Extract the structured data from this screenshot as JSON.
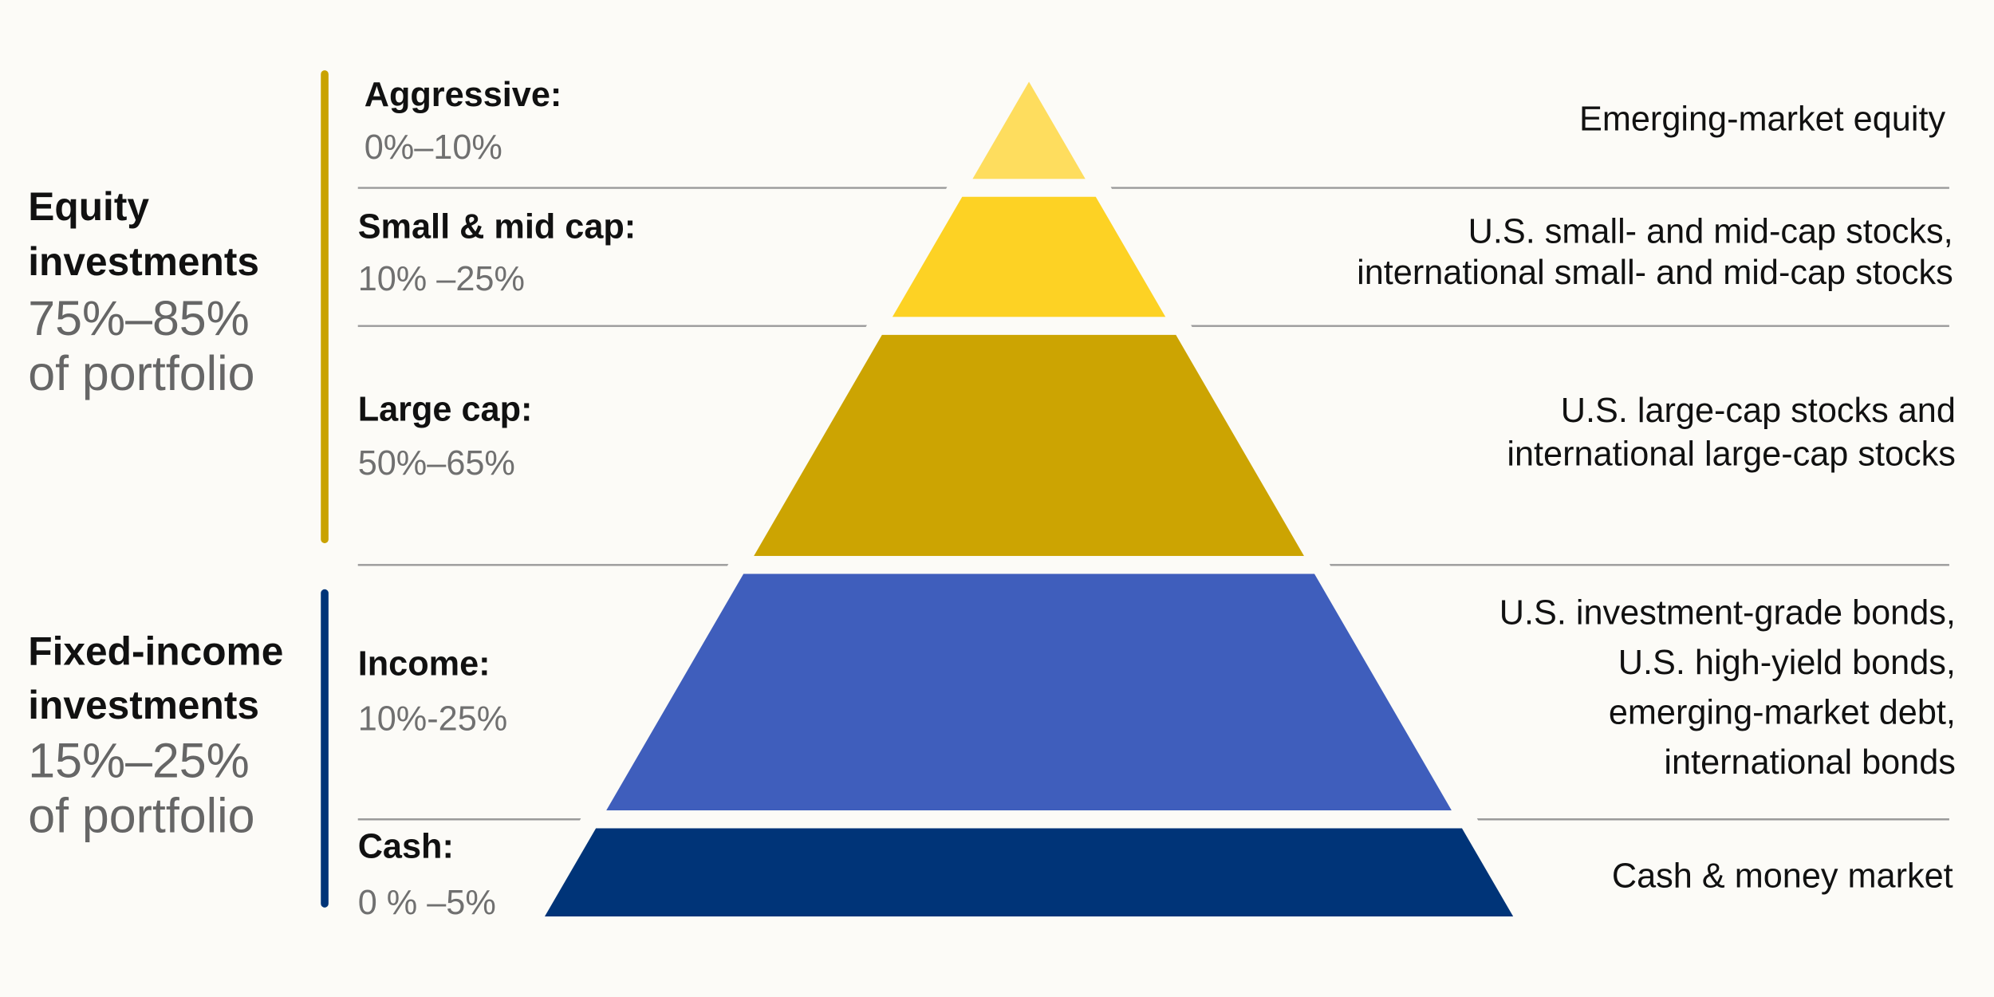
{
  "groups": [
    {
      "title_lines": [
        "Equity",
        "investments"
      ],
      "range": "75%–85%",
      "suffix": "of portfolio"
    },
    {
      "title_lines": [
        "Fixed-income",
        "investments"
      ],
      "range": "15%–25%",
      "suffix": "of portfolio"
    }
  ],
  "tiers": [
    {
      "label": "Aggressive:",
      "range": "0%–10%",
      "description": [
        "Emerging-market equity"
      ]
    },
    {
      "label": "Small & mid cap:",
      "range": "10% –25%",
      "description": [
        "U.S. small- and mid-cap stocks,",
        "international small- and mid-cap stocks"
      ]
    },
    {
      "label": "Large cap:",
      "range": "50%–65%",
      "description": [
        "U.S. large-cap stocks and",
        "international large-cap stocks"
      ]
    },
    {
      "label": "Income:",
      "range": "10%-25%",
      "description": [
        "U.S. investment-grade bonds,",
        "U.S. high-yield bonds,",
        "emerging-market debt,",
        "international bonds"
      ]
    },
    {
      "label": "Cash:",
      "range": "0 % –5%",
      "description": [
        "Cash & money market"
      ]
    }
  ]
}
